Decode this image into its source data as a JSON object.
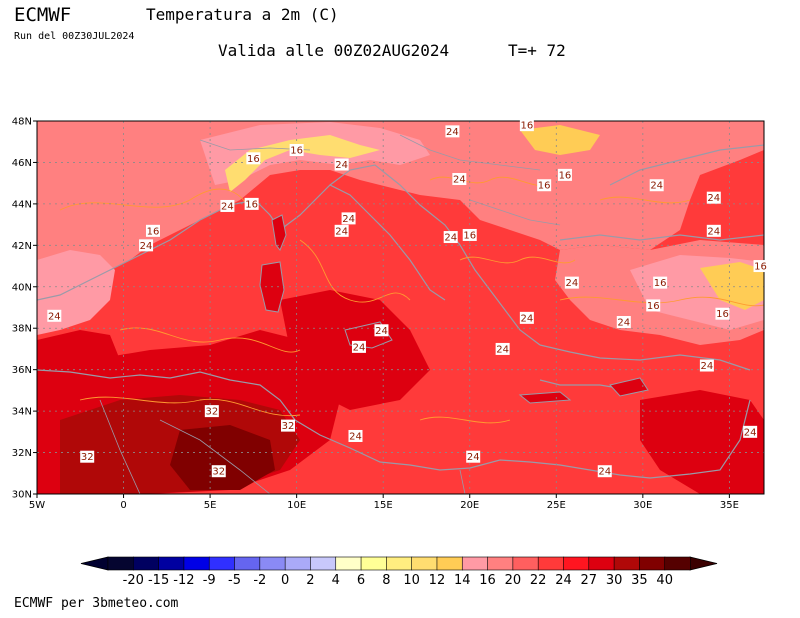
{
  "header": {
    "model": "ECMWF",
    "variable": "Temperatura a 2m (C)",
    "run": "Run del 00Z30JUL2024",
    "valid": "Valida alle 00Z02AUG2024",
    "step": "T=+ 72"
  },
  "map": {
    "region": "Mediterranean",
    "projection": "lat-lon",
    "lon_range": [
      -5,
      37
    ],
    "lat_range": [
      30,
      48
    ],
    "lon_ticks": [
      "5W",
      "0",
      "5E",
      "10E",
      "15E",
      "20E",
      "25E",
      "30E",
      "35E"
    ],
    "lat_ticks": [
      "48N",
      "46N",
      "44N",
      "42N",
      "40N",
      "38N",
      "36N",
      "34N",
      "32N",
      "30N"
    ],
    "contour_labels": [
      {
        "lon": 19.0,
        "lat": 47.5,
        "text": "24"
      },
      {
        "lon": 23.3,
        "lat": 47.8,
        "text": "16"
      },
      {
        "lon": 10.0,
        "lat": 46.6,
        "text": "16"
      },
      {
        "lon": 7.5,
        "lat": 46.2,
        "text": "16"
      },
      {
        "lon": 12.6,
        "lat": 45.9,
        "text": "24"
      },
      {
        "lon": 19.4,
        "lat": 45.2,
        "text": "24"
      },
      {
        "lon": 24.3,
        "lat": 44.9,
        "text": "16"
      },
      {
        "lon": 25.5,
        "lat": 45.4,
        "text": "16"
      },
      {
        "lon": 30.8,
        "lat": 44.9,
        "text": "24"
      },
      {
        "lon": 6.0,
        "lat": 43.9,
        "text": "24"
      },
      {
        "lon": 7.4,
        "lat": 44.0,
        "text": "16"
      },
      {
        "lon": 13.0,
        "lat": 43.3,
        "text": "24"
      },
      {
        "lon": 12.6,
        "lat": 42.7,
        "text": "24"
      },
      {
        "lon": 18.9,
        "lat": 42.4,
        "text": "24"
      },
      {
        "lon": 20.0,
        "lat": 42.5,
        "text": "16"
      },
      {
        "lon": 34.1,
        "lat": 44.3,
        "text": "24"
      },
      {
        "lon": 34.1,
        "lat": 42.7,
        "text": "24"
      },
      {
        "lon": 1.7,
        "lat": 42.7,
        "text": "16"
      },
      {
        "lon": 1.3,
        "lat": 42.0,
        "text": "24"
      },
      {
        "lon": 36.8,
        "lat": 41.0,
        "text": "16"
      },
      {
        "lon": 25.9,
        "lat": 40.2,
        "text": "24"
      },
      {
        "lon": 31.0,
        "lat": 40.2,
        "text": "16"
      },
      {
        "lon": 30.6,
        "lat": 39.1,
        "text": "16"
      },
      {
        "lon": 34.6,
        "lat": 38.7,
        "text": "16"
      },
      {
        "lon": 14.9,
        "lat": 37.9,
        "text": "24"
      },
      {
        "lon": 13.6,
        "lat": 37.1,
        "text": "24"
      },
      {
        "lon": 23.3,
        "lat": 38.5,
        "text": "24"
      },
      {
        "lon": 28.9,
        "lat": 38.3,
        "text": "24"
      },
      {
        "lon": -4.0,
        "lat": 38.6,
        "text": "24"
      },
      {
        "lon": 21.9,
        "lat": 37.0,
        "text": "24"
      },
      {
        "lon": 33.7,
        "lat": 36.2,
        "text": "24"
      },
      {
        "lon": 5.1,
        "lat": 34.0,
        "text": "32"
      },
      {
        "lon": 9.5,
        "lat": 33.3,
        "text": "32"
      },
      {
        "lon": 13.4,
        "lat": 32.8,
        "text": "24"
      },
      {
        "lon": 36.2,
        "lat": 33.0,
        "text": "24"
      },
      {
        "lon": -2.1,
        "lat": 31.8,
        "text": "32"
      },
      {
        "lon": 20.2,
        "lat": 31.8,
        "text": "24"
      },
      {
        "lon": 27.8,
        "lat": 31.1,
        "text": "24"
      },
      {
        "lon": 5.5,
        "lat": 31.1,
        "text": "32"
      }
    ]
  },
  "colorbar": {
    "levels": [
      "-20",
      "-15",
      "-12",
      "-9",
      "-5",
      "-2",
      "0",
      "2",
      "4",
      "6",
      "8",
      "10",
      "12",
      "14",
      "16",
      "20",
      "22",
      "24",
      "27",
      "30",
      "35",
      "40"
    ],
    "colors": [
      "#050530",
      "#000060",
      "#0000a0",
      "#0000e6",
      "#3030ff",
      "#6565f0",
      "#8a8af5",
      "#aaaaf8",
      "#c8c8fb",
      "#ffffc8",
      "#ffff96",
      "#ffee80",
      "#ffdd70",
      "#ffcc55",
      "#ff9aa5",
      "#ff8080",
      "#ff5f5f",
      "#ff3a3a",
      "#ff1520",
      "#dd0010",
      "#b00808",
      "#800000",
      "#550000"
    ],
    "under_color": "#000030",
    "over_color": "#3a0000"
  },
  "footer": {
    "credit": "ECMWF per 3bmeteo.com"
  }
}
